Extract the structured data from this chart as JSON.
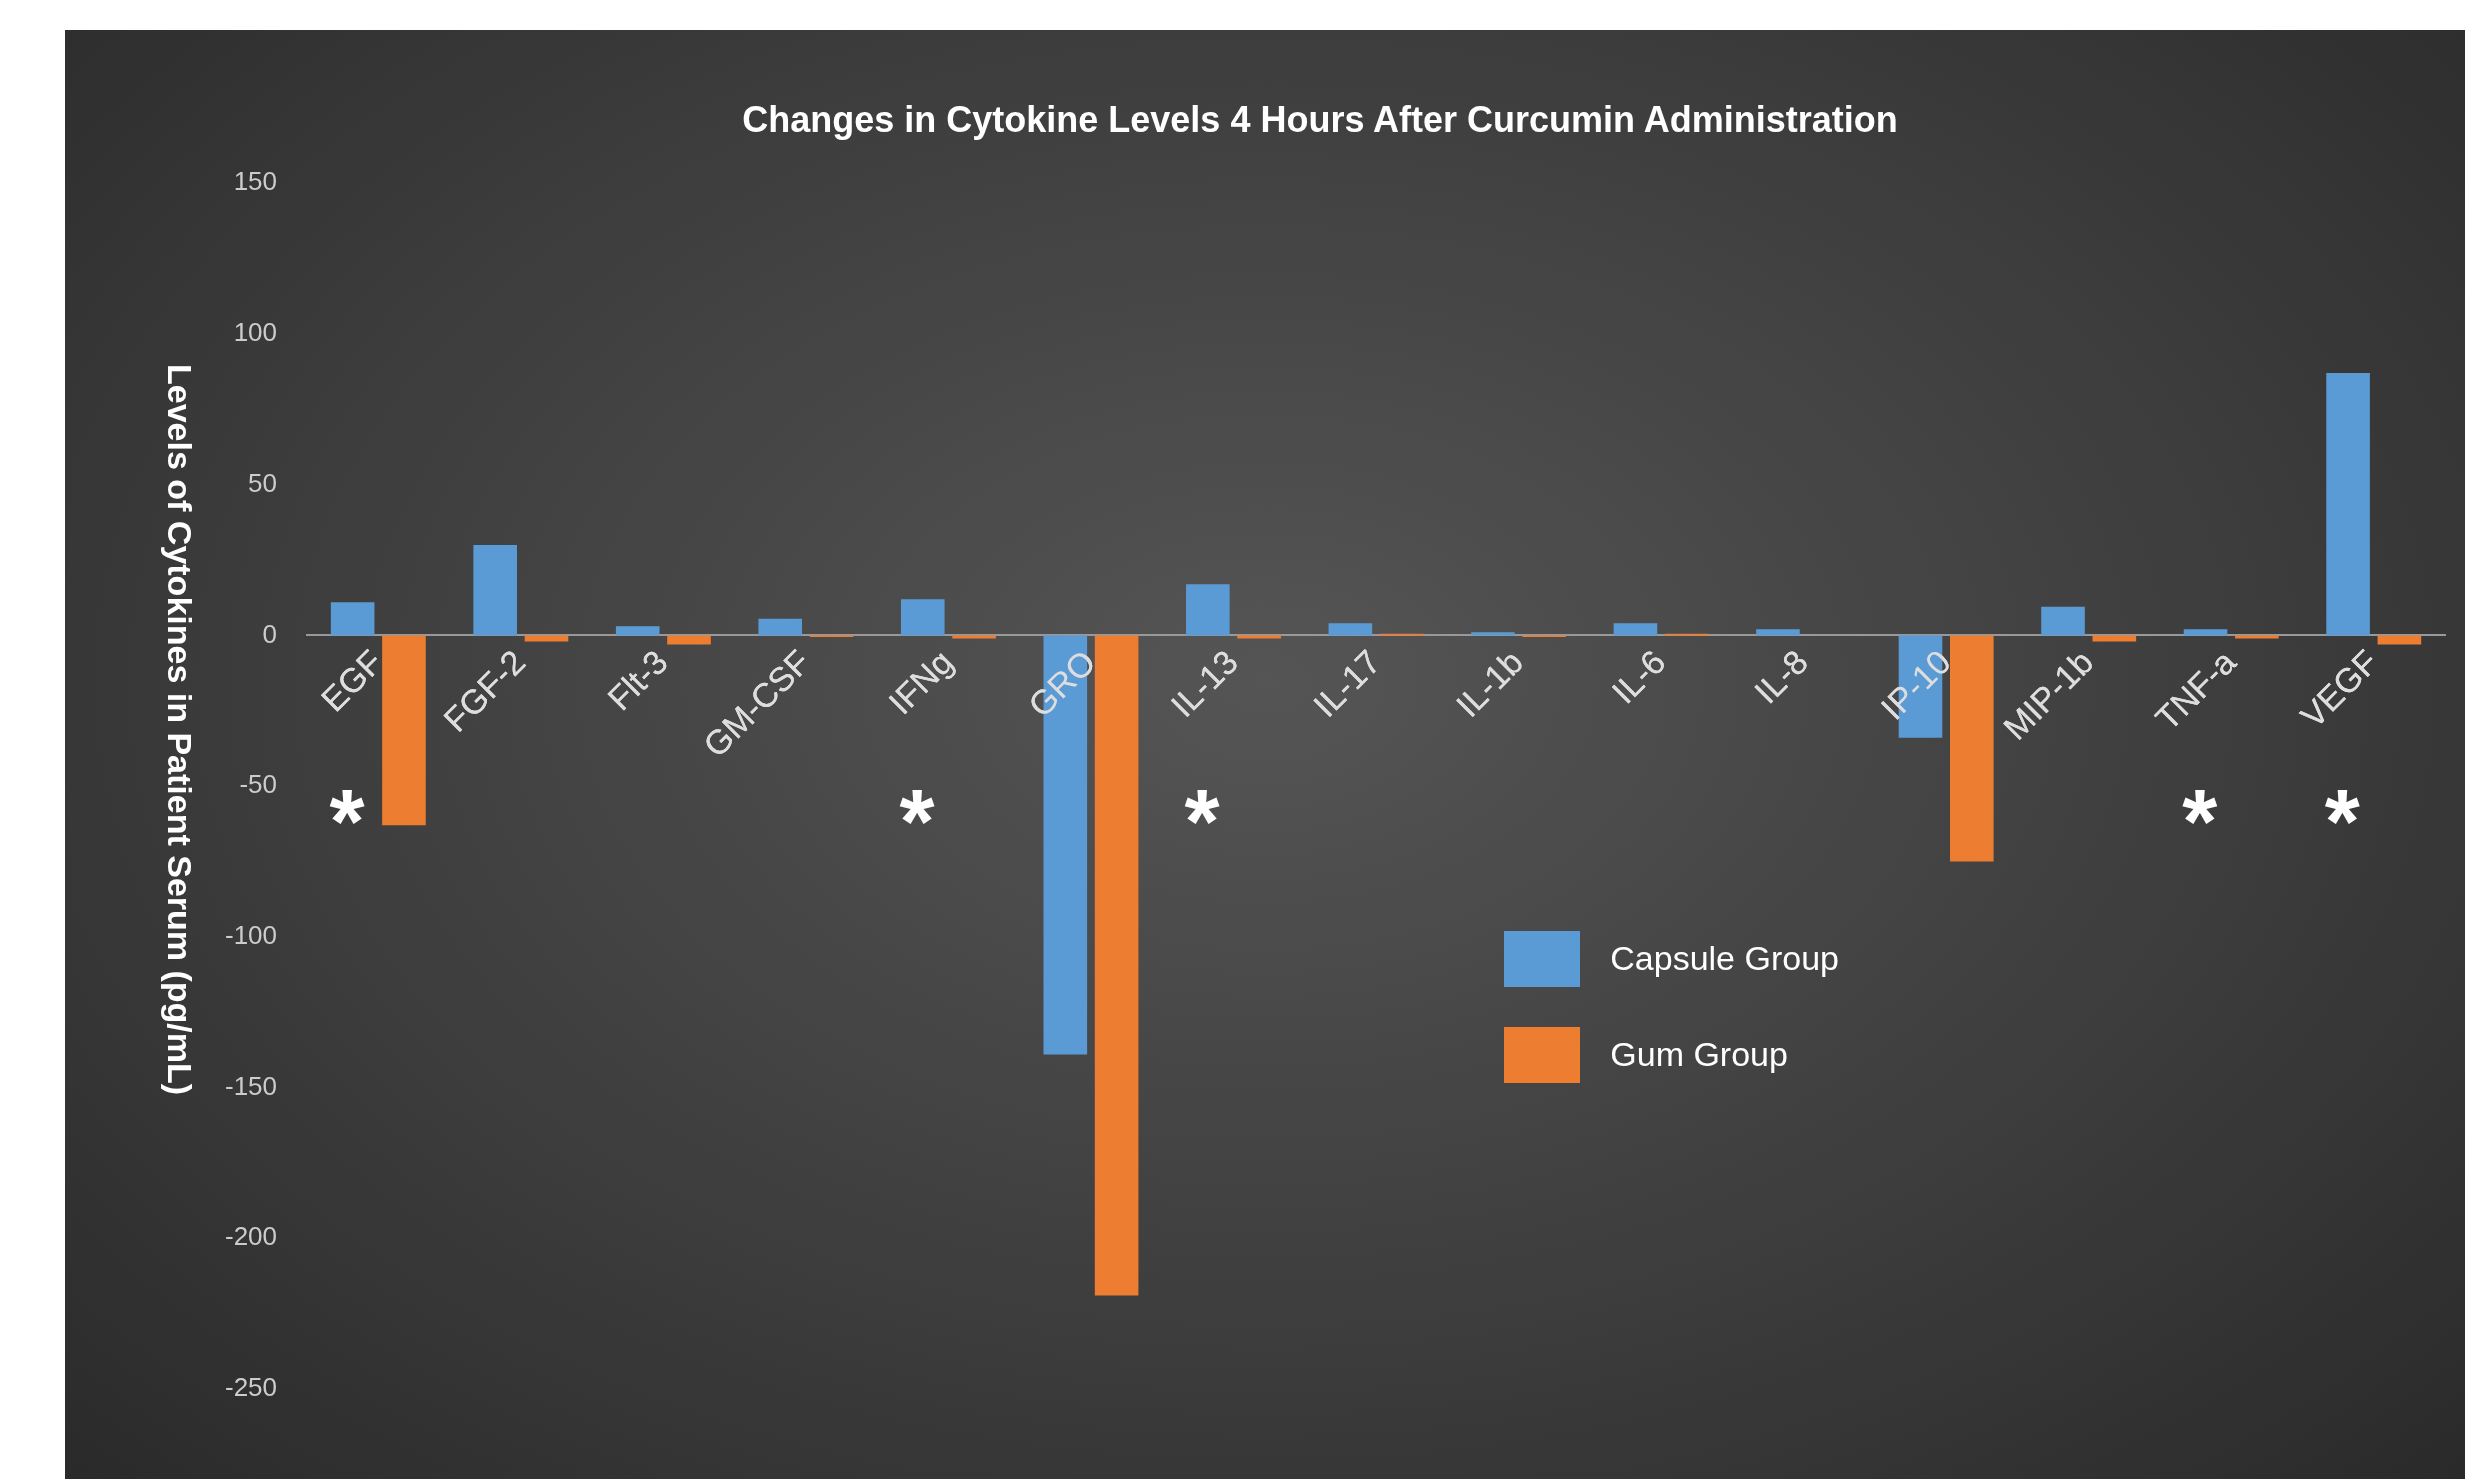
{
  "chart_data": {
    "type": "bar",
    "title": "Changes in Cytokine Levels 4 Hours After Curcumin Administration",
    "ylabel": "Levels of Cytokines in Patient Serum (pg/mL)",
    "categories": [
      "EGF",
      "FGF-2",
      "Flt-3",
      "GM-CSF",
      "IFNg",
      "GRO",
      "IL-13",
      "IL-17",
      "IL-1b",
      "IL-6",
      "IL-8",
      "IP-10",
      "MIP-1b",
      "TNF-a",
      "VEGF"
    ],
    "series": [
      {
        "name": "Capsule Group",
        "color": "#5b9bd5",
        "values": [
          11,
          30,
          3,
          5.5,
          12,
          -139,
          17,
          4,
          1,
          4,
          2,
          -34,
          9.5,
          2,
          87
        ]
      },
      {
        "name": "Gum Group",
        "color": "#ed7d31",
        "values": [
          -63,
          -2,
          -3,
          -0.5,
          -1,
          -219,
          -1,
          0.5,
          -0.5,
          0.5,
          0,
          -75,
          -2,
          -1,
          -3
        ]
      }
    ],
    "ylim": [
      -250,
      150
    ],
    "yticks": [
      -250,
      -200,
      -150,
      -100,
      -50,
      0,
      50,
      100,
      150
    ],
    "grid": false,
    "legend": "center",
    "annotations": [
      "*",
      "*",
      "*",
      "*",
      "*"
    ]
  }
}
